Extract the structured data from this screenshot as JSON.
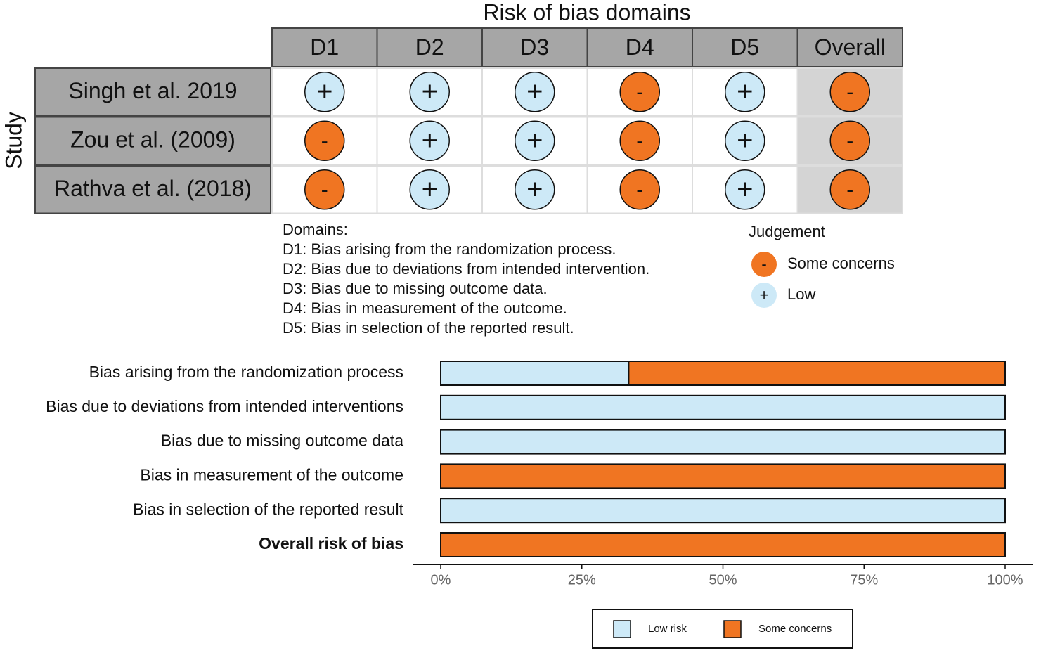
{
  "traffic_light": {
    "title": "Risk of bias domains",
    "y_label": "Study",
    "columns": [
      "D1",
      "D2",
      "D3",
      "D4",
      "D5",
      "Overall"
    ],
    "rows": [
      {
        "study": "Singh et al. 2019",
        "judgements": [
          "+",
          "+",
          "+",
          "-",
          "+",
          "-"
        ]
      },
      {
        "study": "Zou et al. (2009)",
        "judgements": [
          "-",
          "+",
          "+",
          "-",
          "+",
          "-"
        ]
      },
      {
        "study": "Rathva et al. (2018)",
        "judgements": [
          "-",
          "+",
          "+",
          "-",
          "+",
          "-"
        ]
      }
    ],
    "domains_title": "Domains:",
    "domains": [
      "D1: Bias arising from the randomization process.",
      "D2: Bias due to deviations from intended intervention.",
      "D3: Bias due to missing outcome data.",
      "D4: Bias in measurement of the outcome.",
      "D5: Bias in selection of the reported result."
    ],
    "legend": {
      "title": "Judgement",
      "items": [
        {
          "symbol": "-",
          "label": "Some concerns",
          "color": "#f07522"
        },
        {
          "symbol": "+",
          "label": "Low",
          "color": "#cde9f7"
        }
      ]
    }
  },
  "chart_data": {
    "type": "bar",
    "orientation": "horizontal",
    "stacked": true,
    "categories": [
      "Bias arising from the randomization process",
      "Bias due to deviations from intended interventions",
      "Bias due to missing outcome data",
      "Bias in measurement of the outcome",
      "Bias in selection of the reported result",
      "Overall risk of bias"
    ],
    "bold_last_category": true,
    "series": [
      {
        "name": "Low risk",
        "color": "#cde9f7",
        "values": [
          33.3,
          100,
          100,
          0,
          100,
          0
        ]
      },
      {
        "name": "Some concerns",
        "color": "#f07522",
        "values": [
          66.7,
          0,
          0,
          100,
          0,
          100
        ]
      }
    ],
    "xlim": [
      0,
      100
    ],
    "xticks": [
      {
        "value": 0,
        "label": "0%"
      },
      {
        "value": 25,
        "label": "25%"
      },
      {
        "value": 50,
        "label": "50%"
      },
      {
        "value": 75,
        "label": "75%"
      },
      {
        "value": 100,
        "label": "100%"
      }
    ]
  }
}
